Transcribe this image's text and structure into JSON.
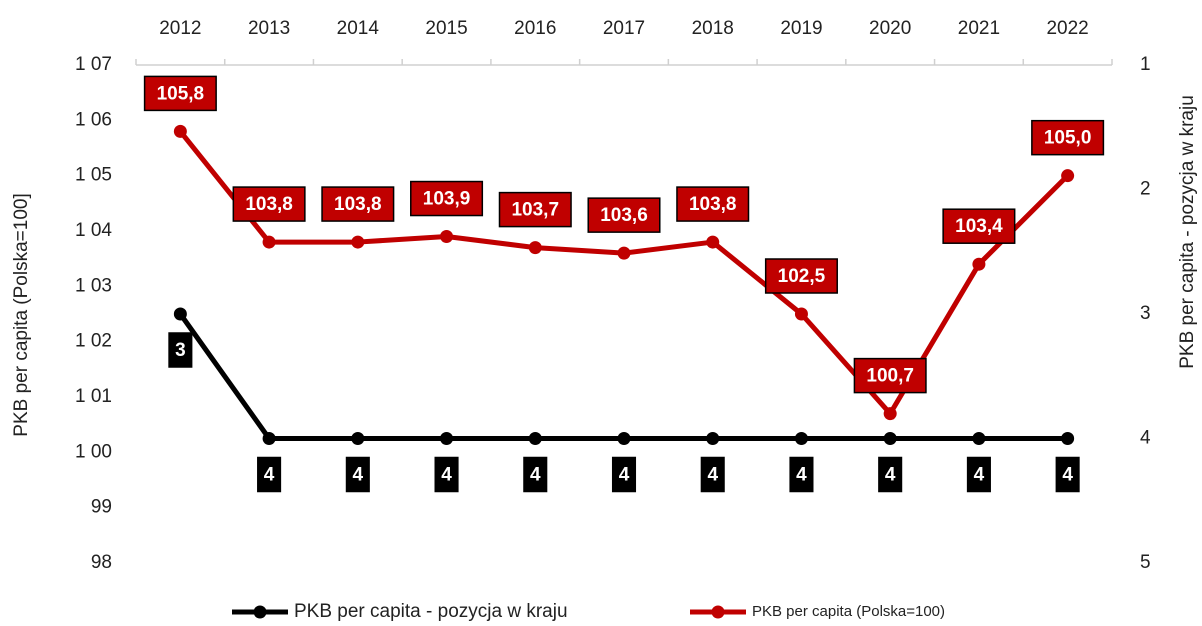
{
  "chart_data": {
    "type": "line",
    "categories": [
      "2012",
      "2013",
      "2014",
      "2015",
      "2016",
      "2017",
      "2018",
      "2019",
      "2020",
      "2021",
      "2022"
    ],
    "ylabel": "PKB per capita (Polska=100]",
    "y2label": "PKB per capita - pozycja w kraju",
    "ylim": [
      98,
      107
    ],
    "yticks": [
      {
        "value": 107,
        "label": "1 07"
      },
      {
        "value": 106,
        "label": "1 06"
      },
      {
        "value": 105,
        "label": "1 05"
      },
      {
        "value": 104,
        "label": "1 04"
      },
      {
        "value": 103,
        "label": "1 03"
      },
      {
        "value": 102,
        "label": "1 02"
      },
      {
        "value": 101,
        "label": "1 01"
      },
      {
        "value": 100,
        "label": "1 00"
      },
      99,
      98
    ],
    "y2lim": [
      1,
      5
    ],
    "y2ticks": [
      1,
      2,
      3,
      4,
      5
    ],
    "y2_inverted": true,
    "grid": false,
    "legend": "bottom",
    "series": [
      {
        "name": "PKB per capita - pozycja w kraju",
        "color": "#000000",
        "axis": "y2",
        "values": [
          3,
          4,
          4,
          4,
          4,
          4,
          4,
          4,
          4,
          4,
          4
        ]
      },
      {
        "name": "PKB per capita (Polska=100)",
        "color": "#c00000",
        "values": [
          105.8,
          103.8,
          103.8,
          103.9,
          103.7,
          103.6,
          103.8,
          102.5,
          100.7,
          103.4,
          105.0
        ],
        "value_labels": [
          "105,8",
          "103,8",
          "103,8",
          "103,9",
          "103,7",
          "103,6",
          "103,8",
          "102,5",
          "100,7",
          "103,4",
          "105,0"
        ]
      }
    ]
  }
}
